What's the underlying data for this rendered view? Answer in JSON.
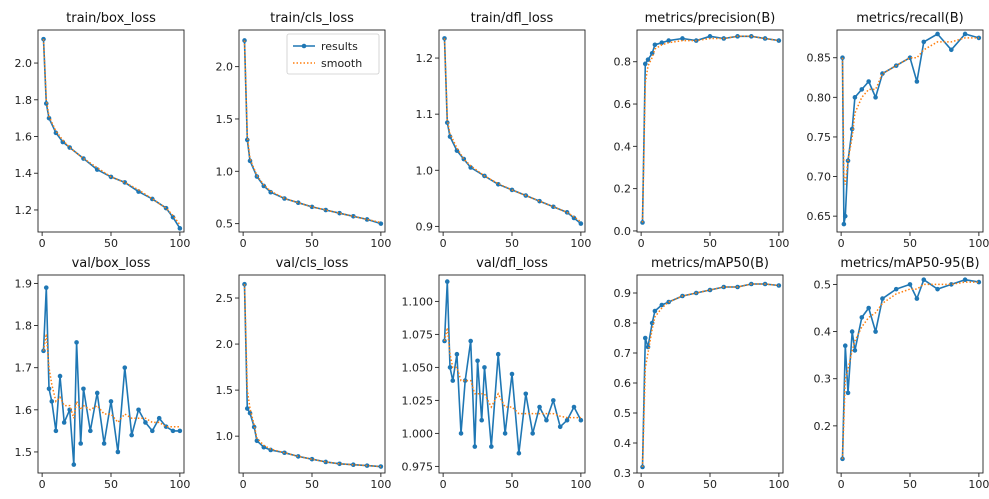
{
  "colors": {
    "results": "#1f77b4",
    "smooth": "#ff7f0e"
  },
  "legend": {
    "entries": [
      "results",
      "smooth"
    ],
    "placement": "upper-right",
    "panel": "train/cls_loss"
  },
  "chart_data": [
    {
      "type": "line",
      "title": "train/box_loss",
      "xlim": [
        -3,
        103
      ],
      "ylim": [
        1.08,
        2.18
      ],
      "xticks": [
        0,
        50,
        100
      ],
      "yticks": [
        1.2,
        1.4,
        1.6,
        1.8,
        2.0
      ],
      "ytick_labels": [
        "1.2",
        "1.4",
        "1.6",
        "1.8",
        "2.0"
      ],
      "x": [
        1,
        3,
        5,
        10,
        15,
        20,
        30,
        40,
        50,
        60,
        70,
        80,
        90,
        95,
        100
      ],
      "series": [
        {
          "name": "results",
          "values": [
            2.13,
            1.78,
            1.7,
            1.62,
            1.57,
            1.54,
            1.48,
            1.42,
            1.38,
            1.35,
            1.3,
            1.26,
            1.21,
            1.16,
            1.1
          ]
        },
        {
          "name": "smooth",
          "values": [
            2.13,
            1.8,
            1.71,
            1.63,
            1.58,
            1.54,
            1.48,
            1.43,
            1.38,
            1.35,
            1.31,
            1.26,
            1.21,
            1.17,
            1.12
          ]
        }
      ]
    },
    {
      "type": "line",
      "title": "train/cls_loss",
      "xlim": [
        -3,
        103
      ],
      "ylim": [
        0.42,
        2.35
      ],
      "xticks": [
        0,
        50,
        100
      ],
      "yticks": [
        0.5,
        1.0,
        1.5,
        2.0
      ],
      "ytick_labels": [
        "0.5",
        "1.0",
        "1.5",
        "2.0"
      ],
      "x": [
        1,
        3,
        5,
        10,
        15,
        20,
        30,
        40,
        50,
        60,
        70,
        80,
        90,
        100
      ],
      "series": [
        {
          "name": "results",
          "values": [
            2.25,
            1.3,
            1.1,
            0.95,
            0.86,
            0.8,
            0.74,
            0.7,
            0.66,
            0.63,
            0.6,
            0.57,
            0.54,
            0.5
          ]
        },
        {
          "name": "smooth",
          "values": [
            2.25,
            1.34,
            1.12,
            0.96,
            0.87,
            0.81,
            0.74,
            0.7,
            0.66,
            0.63,
            0.6,
            0.57,
            0.54,
            0.51
          ]
        }
      ]
    },
    {
      "type": "line",
      "title": "train/dfl_loss",
      "xlim": [
        -3,
        103
      ],
      "ylim": [
        0.89,
        1.25
      ],
      "xticks": [
        0,
        50,
        100
      ],
      "yticks": [
        0.9,
        1.0,
        1.1,
        1.2
      ],
      "ytick_labels": [
        "0.9",
        "1.0",
        "1.1",
        "1.2"
      ],
      "x": [
        1,
        3,
        5,
        10,
        15,
        20,
        30,
        40,
        50,
        60,
        70,
        80,
        90,
        95,
        100
      ],
      "series": [
        {
          "name": "results",
          "values": [
            1.235,
            1.085,
            1.06,
            1.035,
            1.02,
            1.005,
            0.99,
            0.975,
            0.965,
            0.955,
            0.945,
            0.935,
            0.925,
            0.915,
            0.905
          ]
        },
        {
          "name": "smooth",
          "values": [
            1.235,
            1.09,
            1.065,
            1.04,
            1.02,
            1.008,
            0.99,
            0.976,
            0.965,
            0.955,
            0.945,
            0.935,
            0.925,
            0.917,
            0.908
          ]
        }
      ]
    },
    {
      "type": "line",
      "title": "metrics/precision(B)",
      "xlim": [
        -3,
        103
      ],
      "ylim": [
        -0.005,
        0.95
      ],
      "xticks": [
        0,
        50,
        100
      ],
      "yticks": [
        0.0,
        0.2,
        0.4,
        0.6,
        0.8
      ],
      "ytick_labels": [
        "0.0",
        "0.2",
        "0.4",
        "0.6",
        "0.8"
      ],
      "x": [
        1,
        3,
        5,
        8,
        10,
        15,
        20,
        30,
        40,
        50,
        60,
        70,
        80,
        90,
        100
      ],
      "series": [
        {
          "name": "results",
          "values": [
            0.04,
            0.79,
            0.81,
            0.84,
            0.88,
            0.89,
            0.9,
            0.91,
            0.9,
            0.92,
            0.91,
            0.92,
            0.92,
            0.91,
            0.9
          ]
        },
        {
          "name": "smooth",
          "values": [
            0.04,
            0.7,
            0.78,
            0.82,
            0.86,
            0.88,
            0.89,
            0.9,
            0.9,
            0.91,
            0.91,
            0.92,
            0.92,
            0.91,
            0.9
          ]
        }
      ]
    },
    {
      "type": "line",
      "title": "metrics/recall(B)",
      "xlim": [
        -3,
        103
      ],
      "ylim": [
        0.63,
        0.885
      ],
      "xticks": [
        0,
        50,
        100
      ],
      "yticks": [
        0.65,
        0.7,
        0.75,
        0.8,
        0.85
      ],
      "ytick_labels": [
        "0.65",
        "0.70",
        "0.75",
        "0.80",
        "0.85"
      ],
      "x": [
        1,
        2,
        3,
        5,
        8,
        10,
        15,
        20,
        25,
        30,
        40,
        50,
        55,
        60,
        70,
        80,
        90,
        100
      ],
      "series": [
        {
          "name": "results",
          "values": [
            0.85,
            0.64,
            0.65,
            0.72,
            0.76,
            0.8,
            0.81,
            0.82,
            0.8,
            0.83,
            0.84,
            0.85,
            0.82,
            0.87,
            0.88,
            0.86,
            0.88,
            0.875
          ]
        },
        {
          "name": "smooth",
          "values": [
            0.85,
            0.7,
            0.69,
            0.72,
            0.75,
            0.78,
            0.8,
            0.81,
            0.81,
            0.83,
            0.84,
            0.85,
            0.85,
            0.86,
            0.87,
            0.87,
            0.875,
            0.875
          ]
        }
      ]
    },
    {
      "type": "line",
      "title": "val/box_loss",
      "xlim": [
        -3,
        103
      ],
      "ylim": [
        1.45,
        1.92
      ],
      "xticks": [
        0,
        50,
        100
      ],
      "yticks": [
        1.5,
        1.6,
        1.7,
        1.8,
        1.9
      ],
      "ytick_labels": [
        "1.5",
        "1.6",
        "1.7",
        "1.8",
        "1.9"
      ],
      "x": [
        1,
        3,
        5,
        7,
        10,
        13,
        16,
        20,
        23,
        25,
        28,
        30,
        35,
        40,
        45,
        50,
        55,
        60,
        65,
        70,
        75,
        80,
        85,
        90,
        95,
        100
      ],
      "series": [
        {
          "name": "results",
          "values": [
            1.74,
            1.89,
            1.65,
            1.62,
            1.55,
            1.68,
            1.57,
            1.6,
            1.47,
            1.76,
            1.52,
            1.65,
            1.55,
            1.64,
            1.52,
            1.62,
            1.5,
            1.7,
            1.54,
            1.6,
            1.57,
            1.55,
            1.58,
            1.56,
            1.55,
            1.55
          ]
        },
        {
          "name": "smooth",
          "values": [
            1.74,
            1.78,
            1.7,
            1.66,
            1.62,
            1.63,
            1.61,
            1.61,
            1.58,
            1.62,
            1.6,
            1.61,
            1.6,
            1.61,
            1.59,
            1.59,
            1.57,
            1.59,
            1.58,
            1.58,
            1.58,
            1.57,
            1.57,
            1.56,
            1.56,
            1.56
          ]
        }
      ]
    },
    {
      "type": "line",
      "title": "val/cls_loss",
      "xlim": [
        -3,
        103
      ],
      "ylim": [
        0.6,
        2.75
      ],
      "xticks": [
        0,
        50,
        100
      ],
      "yticks": [
        1.0,
        1.5,
        2.0,
        2.5
      ],
      "ytick_labels": [
        "1.0",
        "1.5",
        "2.0",
        "2.5"
      ],
      "x": [
        1,
        3,
        5,
        8,
        10,
        15,
        20,
        30,
        40,
        50,
        60,
        70,
        80,
        90,
        100
      ],
      "series": [
        {
          "name": "results",
          "values": [
            2.65,
            1.3,
            1.25,
            1.1,
            0.95,
            0.88,
            0.85,
            0.82,
            0.78,
            0.75,
            0.72,
            0.7,
            0.69,
            0.68,
            0.67
          ]
        },
        {
          "name": "smooth",
          "values": [
            2.65,
            1.5,
            1.3,
            1.12,
            0.98,
            0.9,
            0.86,
            0.82,
            0.78,
            0.75,
            0.72,
            0.7,
            0.69,
            0.68,
            0.67
          ]
        }
      ]
    },
    {
      "type": "line",
      "title": "val/dfl_loss",
      "xlim": [
        -3,
        103
      ],
      "ylim": [
        0.97,
        1.12
      ],
      "xticks": [
        0,
        50,
        100
      ],
      "yticks": [
        0.975,
        1.0,
        1.025,
        1.05,
        1.075,
        1.1
      ],
      "ytick_labels": [
        "0.975",
        "1.000",
        "1.025",
        "1.050",
        "1.075",
        "1.100"
      ],
      "x": [
        1,
        3,
        5,
        7,
        10,
        13,
        16,
        20,
        23,
        25,
        28,
        30,
        35,
        40,
        45,
        50,
        55,
        60,
        65,
        70,
        75,
        80,
        85,
        90,
        95,
        100
      ],
      "series": [
        {
          "name": "results",
          "values": [
            1.07,
            1.115,
            1.05,
            1.04,
            1.06,
            1.0,
            1.04,
            1.07,
            0.99,
            1.055,
            1.01,
            1.05,
            0.99,
            1.06,
            1.0,
            1.045,
            0.985,
            1.03,
            1.0,
            1.02,
            1.01,
            1.025,
            1.005,
            1.01,
            1.02,
            1.01
          ]
        },
        {
          "name": "smooth",
          "values": [
            1.07,
            1.08,
            1.06,
            1.05,
            1.05,
            1.04,
            1.04,
            1.04,
            1.03,
            1.03,
            1.03,
            1.03,
            1.02,
            1.03,
            1.02,
            1.02,
            1.015,
            1.015,
            1.015,
            1.015,
            1.015,
            1.015,
            1.013,
            1.012,
            1.012,
            1.012
          ]
        }
      ]
    },
    {
      "type": "line",
      "title": "metrics/mAP50(B)",
      "xlim": [
        -3,
        103
      ],
      "ylim": [
        0.3,
        0.96
      ],
      "xticks": [
        0,
        50,
        100
      ],
      "yticks": [
        0.3,
        0.4,
        0.5,
        0.6,
        0.7,
        0.8,
        0.9
      ],
      "ytick_labels": [
        "0.3",
        "0.4",
        "0.5",
        "0.6",
        "0.7",
        "0.8",
        "0.9"
      ],
      "x": [
        1,
        3,
        5,
        8,
        10,
        15,
        20,
        30,
        40,
        50,
        60,
        70,
        80,
        90,
        100
      ],
      "series": [
        {
          "name": "results",
          "values": [
            0.32,
            0.75,
            0.72,
            0.8,
            0.84,
            0.86,
            0.87,
            0.89,
            0.9,
            0.91,
            0.92,
            0.92,
            0.93,
            0.93,
            0.925
          ]
        },
        {
          "name": "smooth",
          "values": [
            0.32,
            0.65,
            0.7,
            0.78,
            0.82,
            0.85,
            0.87,
            0.89,
            0.9,
            0.91,
            0.92,
            0.92,
            0.93,
            0.93,
            0.925
          ]
        }
      ]
    },
    {
      "type": "line",
      "title": "metrics/mAP50-95(B)",
      "xlim": [
        -3,
        103
      ],
      "ylim": [
        0.1,
        0.52
      ],
      "xticks": [
        0,
        50,
        100
      ],
      "yticks": [
        0.2,
        0.3,
        0.4,
        0.5
      ],
      "ytick_labels": [
        "0.2",
        "0.3",
        "0.4",
        "0.5"
      ],
      "x": [
        1,
        3,
        5,
        8,
        10,
        15,
        20,
        25,
        30,
        40,
        50,
        55,
        60,
        70,
        80,
        90,
        100
      ],
      "series": [
        {
          "name": "results",
          "values": [
            0.13,
            0.37,
            0.27,
            0.4,
            0.36,
            0.43,
            0.45,
            0.4,
            0.47,
            0.49,
            0.5,
            0.47,
            0.51,
            0.49,
            0.5,
            0.51,
            0.505
          ]
        },
        {
          "name": "smooth",
          "values": [
            0.13,
            0.3,
            0.32,
            0.36,
            0.38,
            0.41,
            0.43,
            0.44,
            0.46,
            0.48,
            0.49,
            0.49,
            0.5,
            0.5,
            0.5,
            0.505,
            0.505
          ]
        }
      ]
    }
  ]
}
